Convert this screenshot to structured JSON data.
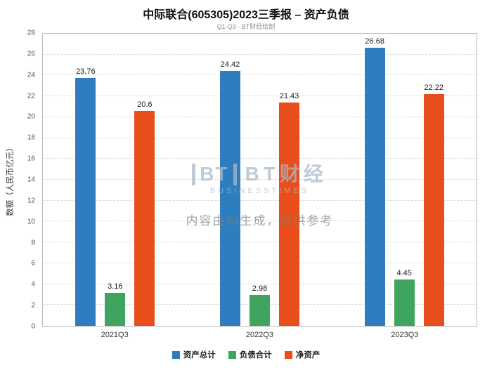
{
  "title": "中际联合(605305)2023三季报 – 资产负债",
  "subtitle": "Q1-Q3 · BT财经绘制",
  "watermark": {
    "logo": "BT",
    "brand": "BT财经",
    "brand_sub": "BUSINESSTIMES",
    "notice": "内容由AI生成，仅供参考"
  },
  "chart_data": {
    "type": "bar",
    "categories": [
      "2021Q3",
      "2022Q3",
      "2023Q3"
    ],
    "series": [
      {
        "name": "资产总计",
        "color": "#2e7ebf",
        "values": [
          23.76,
          24.42,
          26.68
        ]
      },
      {
        "name": "负债合计",
        "color": "#3fa45e",
        "values": [
          3.16,
          2.98,
          4.45
        ]
      },
      {
        "name": "净资产",
        "color": "#e84e1b",
        "values": [
          20.6,
          21.43,
          22.22
        ]
      }
    ],
    "title": "中际联合(605305)2023三季报 – 资产负债",
    "xlabel": "",
    "ylabel": "数额（人民币亿元）",
    "ylim": [
      0,
      28
    ],
    "ytick_step": 2,
    "grid": "dashed-horizontal",
    "legend_position": "bottom"
  }
}
